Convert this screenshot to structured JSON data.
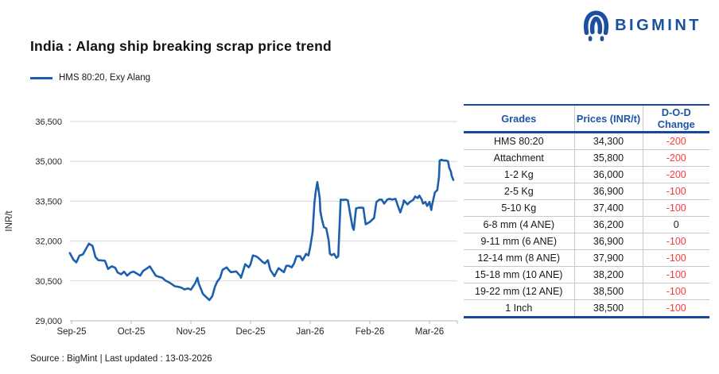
{
  "header": {
    "title": "India : Alang ship breaking scrap price trend",
    "logo_text": "BIGMINT"
  },
  "legend": {
    "label": "HMS 80:20, Exy Alang"
  },
  "chart_data": {
    "type": "line",
    "title": "India : Alang ship breaking scrap price trend",
    "series_name": "HMS 80:20, Exy Alang",
    "ylabel": "INR/t",
    "ylim": [
      29000,
      36500
    ],
    "ytick_labels": [
      "36,500",
      "35,000",
      "33,500",
      "32,000",
      "30,500",
      "29,000"
    ],
    "xtick_labels": [
      "Sep-25",
      "Oct-25",
      "Nov-25",
      "Dec-25",
      "Jan-26",
      "Feb-26",
      "Mar-26"
    ],
    "x_unit": "months since Sep-25 tick",
    "grid": true,
    "legend_position": "top-left",
    "points": [
      [
        -0.03,
        31550
      ],
      [
        0.03,
        31300
      ],
      [
        0.08,
        31200
      ],
      [
        0.13,
        31450
      ],
      [
        0.19,
        31500
      ],
      [
        0.24,
        31700
      ],
      [
        0.29,
        31900
      ],
      [
        0.35,
        31820
      ],
      [
        0.4,
        31400
      ],
      [
        0.45,
        31280
      ],
      [
        0.51,
        31270
      ],
      [
        0.56,
        31260
      ],
      [
        0.61,
        30950
      ],
      [
        0.67,
        31050
      ],
      [
        0.73,
        31000
      ],
      [
        0.77,
        30820
      ],
      [
        0.83,
        30750
      ],
      [
        0.88,
        30850
      ],
      [
        0.93,
        30700
      ],
      [
        0.99,
        30820
      ],
      [
        1.04,
        30850
      ],
      [
        1.09,
        30780
      ],
      [
        1.15,
        30700
      ],
      [
        1.2,
        30880
      ],
      [
        1.25,
        30950
      ],
      [
        1.31,
        31050
      ],
      [
        1.36,
        30880
      ],
      [
        1.41,
        30700
      ],
      [
        1.47,
        30650
      ],
      [
        1.52,
        30620
      ],
      [
        1.57,
        30520
      ],
      [
        1.63,
        30450
      ],
      [
        1.68,
        30380
      ],
      [
        1.73,
        30300
      ],
      [
        1.79,
        30280
      ],
      [
        1.84,
        30250
      ],
      [
        1.89,
        30180
      ],
      [
        1.95,
        30220
      ],
      [
        2.0,
        30170
      ],
      [
        2.07,
        30410
      ],
      [
        2.11,
        30620
      ],
      [
        2.13,
        30410
      ],
      [
        2.2,
        30020
      ],
      [
        2.24,
        29930
      ],
      [
        2.31,
        29780
      ],
      [
        2.36,
        29930
      ],
      [
        2.4,
        30260
      ],
      [
        2.44,
        30470
      ],
      [
        2.49,
        30620
      ],
      [
        2.53,
        30920
      ],
      [
        2.6,
        31010
      ],
      [
        2.63,
        30920
      ],
      [
        2.67,
        30830
      ],
      [
        2.76,
        30860
      ],
      [
        2.83,
        30680
      ],
      [
        2.84,
        30620
      ],
      [
        2.91,
        31130
      ],
      [
        2.97,
        31010
      ],
      [
        3.0,
        31130
      ],
      [
        3.04,
        31460
      ],
      [
        3.09,
        31430
      ],
      [
        3.13,
        31370
      ],
      [
        3.2,
        31220
      ],
      [
        3.24,
        31160
      ],
      [
        3.29,
        31280
      ],
      [
        3.33,
        30920
      ],
      [
        3.4,
        30680
      ],
      [
        3.44,
        30860
      ],
      [
        3.47,
        30980
      ],
      [
        3.56,
        30830
      ],
      [
        3.6,
        31070
      ],
      [
        3.64,
        31070
      ],
      [
        3.69,
        31010
      ],
      [
        3.73,
        31160
      ],
      [
        3.77,
        31430
      ],
      [
        3.83,
        31430
      ],
      [
        3.87,
        31280
      ],
      [
        3.91,
        31430
      ],
      [
        3.93,
        31520
      ],
      [
        3.97,
        31460
      ],
      [
        4.0,
        31770
      ],
      [
        4.04,
        32330
      ],
      [
        4.07,
        33420
      ],
      [
        4.09,
        33830
      ],
      [
        4.12,
        34220
      ],
      [
        4.16,
        33620
      ],
      [
        4.17,
        33120
      ],
      [
        4.2,
        32780
      ],
      [
        4.23,
        32520
      ],
      [
        4.27,
        32480
      ],
      [
        4.31,
        32030
      ],
      [
        4.33,
        31520
      ],
      [
        4.36,
        31470
      ],
      [
        4.4,
        31520
      ],
      [
        4.44,
        31370
      ],
      [
        4.47,
        31430
      ],
      [
        4.51,
        33560
      ],
      [
        4.55,
        33550
      ],
      [
        4.59,
        33560
      ],
      [
        4.63,
        33540
      ],
      [
        4.67,
        33020
      ],
      [
        4.71,
        32520
      ],
      [
        4.73,
        32420
      ],
      [
        4.77,
        33230
      ],
      [
        4.83,
        33260
      ],
      [
        4.89,
        33250
      ],
      [
        4.93,
        32630
      ],
      [
        5.0,
        32720
      ],
      [
        5.07,
        32870
      ],
      [
        5.11,
        33470
      ],
      [
        5.16,
        33560
      ],
      [
        5.2,
        33560
      ],
      [
        5.24,
        33410
      ],
      [
        5.29,
        33560
      ],
      [
        5.33,
        33590
      ],
      [
        5.37,
        33560
      ],
      [
        5.43,
        33590
      ],
      [
        5.47,
        33320
      ],
      [
        5.51,
        33080
      ],
      [
        5.56,
        33410
      ],
      [
        5.57,
        33530
      ],
      [
        5.63,
        33380
      ],
      [
        5.67,
        33470
      ],
      [
        5.73,
        33560
      ],
      [
        5.76,
        33680
      ],
      [
        5.8,
        33620
      ],
      [
        5.83,
        33710
      ],
      [
        5.87,
        33560
      ],
      [
        5.89,
        33410
      ],
      [
        5.93,
        33470
      ],
      [
        5.96,
        33320
      ],
      [
        6.0,
        33470
      ],
      [
        6.03,
        33170
      ],
      [
        6.04,
        33320
      ],
      [
        6.09,
        33830
      ],
      [
        6.13,
        33920
      ],
      [
        6.16,
        34430
      ],
      [
        6.17,
        35030
      ],
      [
        6.2,
        35060
      ],
      [
        6.24,
        35030
      ],
      [
        6.28,
        35030
      ],
      [
        6.31,
        35000
      ],
      [
        6.33,
        34760
      ],
      [
        6.36,
        34610
      ],
      [
        6.37,
        34460
      ],
      [
        6.4,
        34300
      ]
    ]
  },
  "table": {
    "headers": [
      "Grades",
      "Prices (INR/t)",
      "D-O-D Change"
    ],
    "rows": [
      {
        "grade": "HMS 80:20",
        "price": "34,300",
        "change": "-200"
      },
      {
        "grade": "Attachment",
        "price": "35,800",
        "change": "-200"
      },
      {
        "grade": "1-2 Kg",
        "price": "36,000",
        "change": "-200"
      },
      {
        "grade": "2-5 Kg",
        "price": "36,900",
        "change": "-100"
      },
      {
        "grade": "5-10 Kg",
        "price": "37,400",
        "change": "-100"
      },
      {
        "grade": "6-8 mm (4 ANE)",
        "price": "36,200",
        "change": "0"
      },
      {
        "grade": "9-11 mm (6 ANE)",
        "price": "36,900",
        "change": "-100"
      },
      {
        "grade": "12-14 mm (8 ANE)",
        "price": "37,900",
        "change": "-100"
      },
      {
        "grade": "15-18 mm (10 ANE)",
        "price": "38,200",
        "change": "-100"
      },
      {
        "grade": "19-22 mm (12 ANE)",
        "price": "38,500",
        "change": "-100"
      },
      {
        "grade": "1 Inch",
        "price": "38,500",
        "change": "-100"
      }
    ]
  },
  "footer": {
    "source": "Source : BigMint | Last updated : 13-03-2026"
  },
  "colors": {
    "line": "#1B5FAD",
    "navy": "#17479E",
    "header_text": "#1F55A6",
    "negative": "#F83A3C",
    "logo": "#1C4FA0",
    "gridline": "#D9D9D9"
  }
}
